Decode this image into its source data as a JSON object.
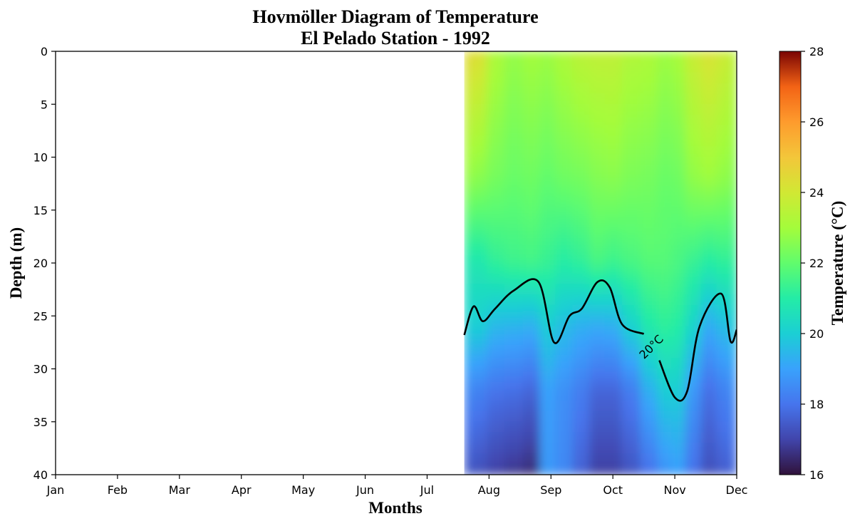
{
  "chart_data": {
    "type": "heatmap",
    "title": "Hovmöller Diagram of Temperature",
    "subtitle": "El Pelado Station - 1992",
    "xlabel": "Months",
    "ylabel": "Depth (m)",
    "x_tick_labels": [
      "Jan",
      "Feb",
      "Mar",
      "Apr",
      "May",
      "Jun",
      "Jul",
      "Aug",
      "Sep",
      "Oct",
      "Nov",
      "Dec"
    ],
    "y_ticks": [
      0,
      5,
      10,
      15,
      20,
      25,
      30,
      35,
      40
    ],
    "xlim": [
      1,
      12
    ],
    "ylim": [
      40,
      0
    ],
    "y_inverted": true,
    "data_start_month": 7.6,
    "colorbar": {
      "label": "Temperature (°C)",
      "range": [
        16,
        28
      ],
      "ticks": [
        16,
        18,
        20,
        22,
        24,
        26,
        28
      ],
      "colormap": "turbo"
    },
    "isotherm": {
      "value": 20,
      "label": "20°C",
      "depths": [
        {
          "month": 7.6,
          "depth": 26.8
        },
        {
          "month": 7.75,
          "depth": 24.1
        },
        {
          "month": 7.9,
          "depth": 25.5
        },
        {
          "month": 8.1,
          "depth": 24.3
        },
        {
          "month": 8.4,
          "depth": 22.6
        },
        {
          "month": 8.8,
          "depth": 21.8
        },
        {
          "month": 9.05,
          "depth": 27.5
        },
        {
          "month": 9.3,
          "depth": 25.0
        },
        {
          "month": 9.5,
          "depth": 24.3
        },
        {
          "month": 9.75,
          "depth": 21.8
        },
        {
          "month": 9.95,
          "depth": 22.3
        },
        {
          "month": 10.15,
          "depth": 25.8
        },
        {
          "month": 10.5,
          "depth": 26.7
        },
        {
          "month": 10.75,
          "depth": 29.2
        },
        {
          "month": 11.0,
          "depth": 32.7
        },
        {
          "month": 11.2,
          "depth": 32.1
        },
        {
          "month": 11.4,
          "depth": 26.0
        },
        {
          "month": 11.75,
          "depth": 22.9
        },
        {
          "month": 11.9,
          "depth": 27.4
        },
        {
          "month": 12.0,
          "depth": 26.3
        }
      ]
    },
    "temperature_profile": [
      {
        "month": 7.6,
        "t0": 24.5,
        "t12": 22.8,
        "t20": 20.8,
        "t26": 20.0,
        "t32": 18.5,
        "t40": 17.4
      },
      {
        "month": 7.85,
        "t0": 24.3,
        "t12": 22.6,
        "t20": 20.8,
        "t26": 20.0,
        "t32": 18.3,
        "t40": 17.2
      },
      {
        "month": 8.1,
        "t0": 23.2,
        "t12": 22.3,
        "t20": 21.2,
        "t26": 19.5,
        "t32": 18.0,
        "t40": 16.9
      },
      {
        "month": 8.4,
        "t0": 22.8,
        "t12": 22.1,
        "t20": 21.4,
        "t26": 19.4,
        "t32": 17.9,
        "t40": 16.7
      },
      {
        "month": 8.7,
        "t0": 23.0,
        "t12": 22.2,
        "t20": 21.5,
        "t26": 19.3,
        "t32": 17.7,
        "t40": 16.5
      },
      {
        "month": 8.95,
        "t0": 22.9,
        "t12": 22.0,
        "t20": 21.3,
        "t26": 20.0,
        "t32": 19.0,
        "t40": 18.8
      },
      {
        "month": 9.2,
        "t0": 23.2,
        "t12": 22.2,
        "t20": 21.0,
        "t26": 19.6,
        "t32": 18.6,
        "t40": 18.4
      },
      {
        "month": 9.5,
        "t0": 23.5,
        "t12": 22.3,
        "t20": 21.2,
        "t26": 19.3,
        "t32": 18.2,
        "t40": 17.6
      },
      {
        "month": 9.75,
        "t0": 23.6,
        "t12": 22.5,
        "t20": 21.6,
        "t26": 19.2,
        "t32": 17.7,
        "t40": 16.9
      },
      {
        "month": 10.0,
        "t0": 23.6,
        "t12": 22.6,
        "t20": 21.4,
        "t26": 19.3,
        "t32": 17.7,
        "t40": 16.9
      },
      {
        "month": 10.3,
        "t0": 23.3,
        "t12": 22.4,
        "t20": 21.6,
        "t26": 20.1,
        "t32": 18.2,
        "t40": 17.3
      },
      {
        "month": 10.6,
        "t0": 23.2,
        "t12": 22.3,
        "t20": 21.8,
        "t26": 20.9,
        "t32": 19.3,
        "t40": 17.9
      },
      {
        "month": 10.85,
        "t0": 22.9,
        "t12": 22.1,
        "t20": 21.8,
        "t26": 21.2,
        "t32": 20.0,
        "t40": 18.6
      },
      {
        "month": 11.05,
        "t0": 23.1,
        "t12": 22.2,
        "t20": 21.6,
        "t26": 21.0,
        "t32": 20.0,
        "t40": 18.9
      },
      {
        "month": 11.3,
        "t0": 23.8,
        "t12": 22.7,
        "t20": 21.3,
        "t26": 20.2,
        "t32": 18.8,
        "t40": 17.9
      },
      {
        "month": 11.55,
        "t0": 24.2,
        "t12": 22.9,
        "t20": 21.0,
        "t26": 19.2,
        "t32": 17.9,
        "t40": 17.2
      },
      {
        "month": 11.8,
        "t0": 23.9,
        "t12": 22.7,
        "t20": 21.2,
        "t26": 19.6,
        "t32": 18.3,
        "t40": 17.5
      },
      {
        "month": 12.0,
        "t0": 23.5,
        "t12": 22.5,
        "t20": 21.2,
        "t26": 19.9,
        "t32": 18.6,
        "t40": 17.7
      }
    ]
  }
}
